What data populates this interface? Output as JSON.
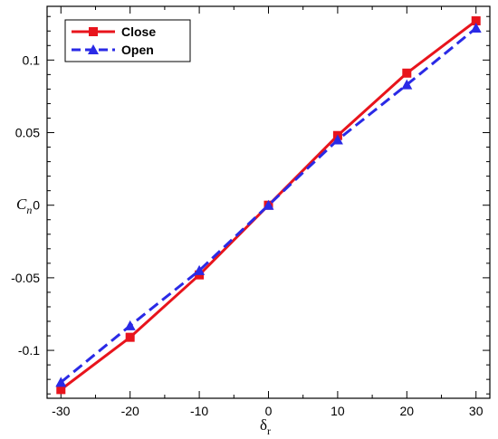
{
  "chart_data": {
    "type": "line",
    "xlabel": "δ",
    "xlabel_subscript": "r",
    "ylabel": "C",
    "ylabel_subscript": "n",
    "xlim": [
      -32,
      32
    ],
    "ylim": [
      -0.133,
      0.137
    ],
    "x_ticks": [
      -30,
      -20,
      -10,
      0,
      10,
      20,
      30
    ],
    "x_tick_labels": [
      "-30",
      "-20",
      "-10",
      "0",
      "10",
      "20",
      "30"
    ],
    "y_ticks": [
      -0.1,
      -0.05,
      0,
      0.05,
      0.1
    ],
    "y_tick_labels": [
      "-0.1",
      "-0.05",
      "0",
      "0.05",
      "0.1"
    ],
    "grid": false,
    "legend_position": "top-left",
    "x": [
      -30,
      -20,
      -10,
      0,
      10,
      20,
      30
    ],
    "series": [
      {
        "name": "Close",
        "values": [
          -0.127,
          -0.091,
          -0.048,
          0.0,
          0.048,
          0.091,
          0.127
        ],
        "color": "#e8141c",
        "marker": "square",
        "dash": "solid"
      },
      {
        "name": "Open",
        "values": [
          -0.122,
          -0.083,
          -0.045,
          0.0,
          0.045,
          0.083,
          0.122
        ],
        "color": "#2a2ae6",
        "marker": "triangle",
        "dash": "dashed"
      }
    ]
  }
}
